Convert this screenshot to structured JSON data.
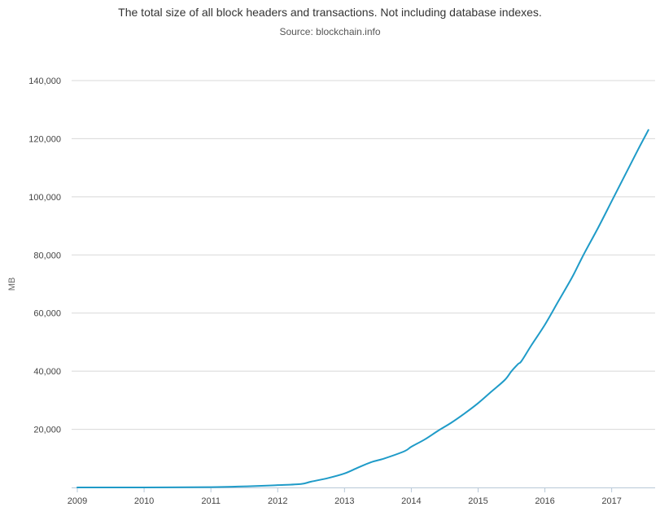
{
  "chart_data": {
    "type": "line",
    "title": "The total size of all block headers and transactions. Not including database indexes.",
    "subtitle": "Source: blockchain.info",
    "xlabel": "",
    "ylabel": "MB",
    "xlim": [
      2009.0,
      2017.65
    ],
    "ylim": [
      0,
      140000
    ],
    "x_ticks": [
      2009,
      2010,
      2011,
      2012,
      2013,
      2014,
      2015,
      2016,
      2017
    ],
    "y_ticks": [
      20000,
      40000,
      60000,
      80000,
      100000,
      120000,
      140000
    ],
    "grid": true,
    "legend": "none",
    "series": [
      {
        "color": "#1f9bc8",
        "x": [
          2009.0,
          2010.0,
          2011.0,
          2011.4,
          2011.8,
          2012.0,
          2012.35,
          2012.5,
          2012.75,
          2013.0,
          2013.2,
          2013.4,
          2013.6,
          2013.9,
          2014.0,
          2014.2,
          2014.4,
          2014.6,
          2014.8,
          2015.0,
          2015.2,
          2015.4,
          2015.5,
          2015.6,
          2015.65,
          2015.8,
          2016.0,
          2016.2,
          2016.4,
          2016.5,
          2016.6,
          2016.8,
          2017.0,
          2017.2,
          2017.4,
          2017.55
        ],
        "y": [
          0,
          0,
          100,
          300,
          600,
          800,
          1200,
          2000,
          3200,
          4800,
          6800,
          8700,
          10000,
          12500,
          14000,
          16500,
          19500,
          22300,
          25500,
          29000,
          33000,
          37000,
          40000,
          42500,
          43500,
          49000,
          56000,
          64000,
          72000,
          76500,
          81000,
          89500,
          98500,
          107500,
          116500,
          123000
        ]
      }
    ]
  }
}
